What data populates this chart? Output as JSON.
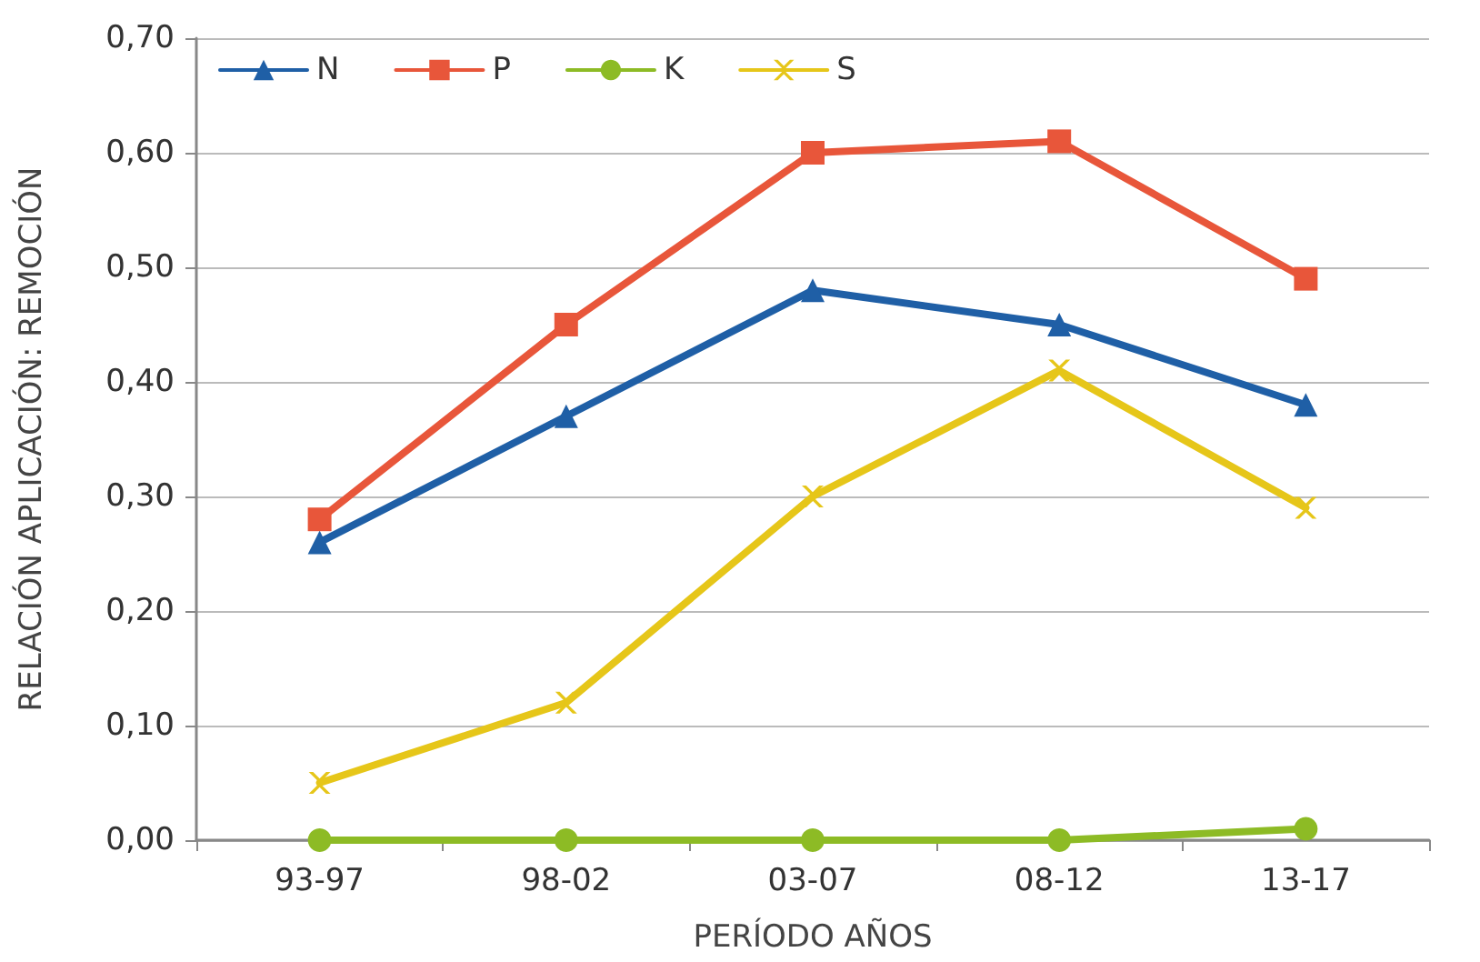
{
  "chart_data": {
    "type": "line",
    "xlabel": "PERÍODO AÑOS",
    "ylabel": "RELACIÓN APLICACIÓN: REMOCIÓN",
    "categories": [
      "93-97",
      "98-02",
      "03-07",
      "08-12",
      "13-17"
    ],
    "series": [
      {
        "name": "N",
        "color": "#1f5fa6",
        "marker": "triangle",
        "values": [
          0.26,
          0.37,
          0.48,
          0.45,
          0.38
        ]
      },
      {
        "name": "P",
        "color": "#e8563a",
        "marker": "square",
        "values": [
          0.28,
          0.45,
          0.6,
          0.61,
          0.49
        ]
      },
      {
        "name": "K",
        "color": "#8dbb25",
        "marker": "circle",
        "values": [
          0.0,
          0.0,
          0.0,
          0.0,
          0.01
        ]
      },
      {
        "name": "S",
        "color": "#e6c619",
        "marker": "cross",
        "values": [
          0.05,
          0.12,
          0.3,
          0.41,
          0.29
        ]
      }
    ],
    "ylim": [
      0,
      0.7
    ],
    "yticks": [
      {
        "value": 0,
        "label": "0,00"
      },
      {
        "value": 0.1,
        "label": "0,10"
      },
      {
        "value": 0.2,
        "label": "0,20"
      },
      {
        "value": 0.3,
        "label": "0,30"
      },
      {
        "value": 0.4,
        "label": "0,40"
      },
      {
        "value": 0.5,
        "label": "0,50"
      },
      {
        "value": 0.6,
        "label": "0,60"
      },
      {
        "value": 0.7,
        "label": "0,70"
      }
    ],
    "grid": "y",
    "legend": "top left",
    "line_style": "solid"
  }
}
